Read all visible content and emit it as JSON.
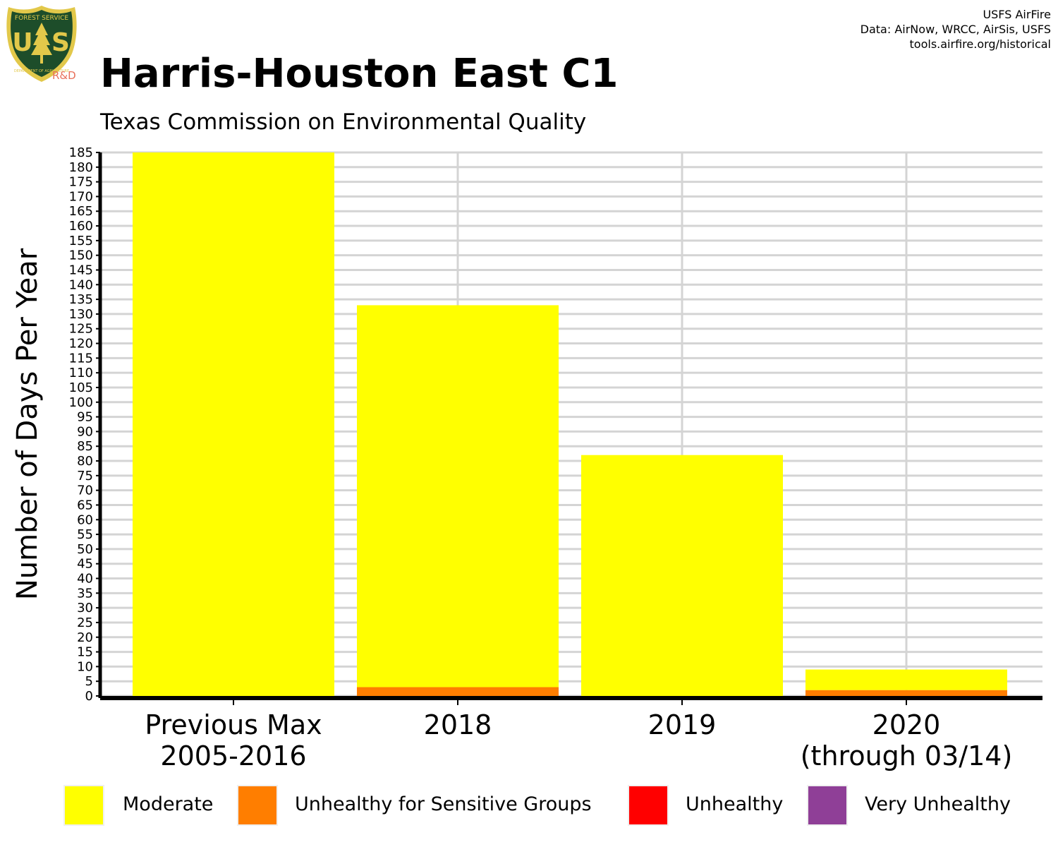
{
  "header": {
    "title": "Harris-Houston East C1",
    "subtitle": "Texas Commission on Environmental Quality",
    "credits": [
      "USFS AirFire",
      "Data: AirNow, WRCC, AirSis, USFS",
      "tools.airfire.org/historical"
    ],
    "logo_label": "R&D",
    "logo_text": [
      "FOREST SERVICE",
      "U",
      "S",
      "DEPARTMENT OF AGRICULTURE"
    ]
  },
  "colors": {
    "moderate": "#ffff00",
    "usg": "#ff7e00",
    "unhealthy": "#ff0000",
    "very_unhealthy": "#8f3f97",
    "grid": "#d4d4d4",
    "logo_green": "#1d4d2a",
    "logo_gold": "#e2c84a"
  },
  "chart_data": {
    "type": "bar",
    "stacked": true,
    "title": "Harris-Houston East C1",
    "subtitle": "Texas Commission on Environmental Quality",
    "xlabel": "",
    "ylabel": "Number of Days Per Year",
    "ylim": [
      0,
      185
    ],
    "ytick_step": 5,
    "grid": true,
    "legend_position": "bottom",
    "categories": [
      [
        "Previous Max",
        "2005-2016"
      ],
      [
        "2018"
      ],
      [
        "2019"
      ],
      [
        "2020",
        "(through 03/14)"
      ]
    ],
    "series": [
      {
        "name": "Moderate",
        "color": "#ffff00",
        "values": [
          185,
          130,
          82,
          7
        ]
      },
      {
        "name": "Unhealthy for Sensitive Groups",
        "color": "#ff7e00",
        "values": [
          0,
          3,
          0,
          2
        ]
      },
      {
        "name": "Unhealthy",
        "color": "#ff0000",
        "values": [
          0,
          0,
          0,
          0
        ]
      },
      {
        "name": "Very Unhealthy",
        "color": "#8f3f97",
        "values": [
          0,
          0,
          0,
          0
        ]
      }
    ]
  }
}
